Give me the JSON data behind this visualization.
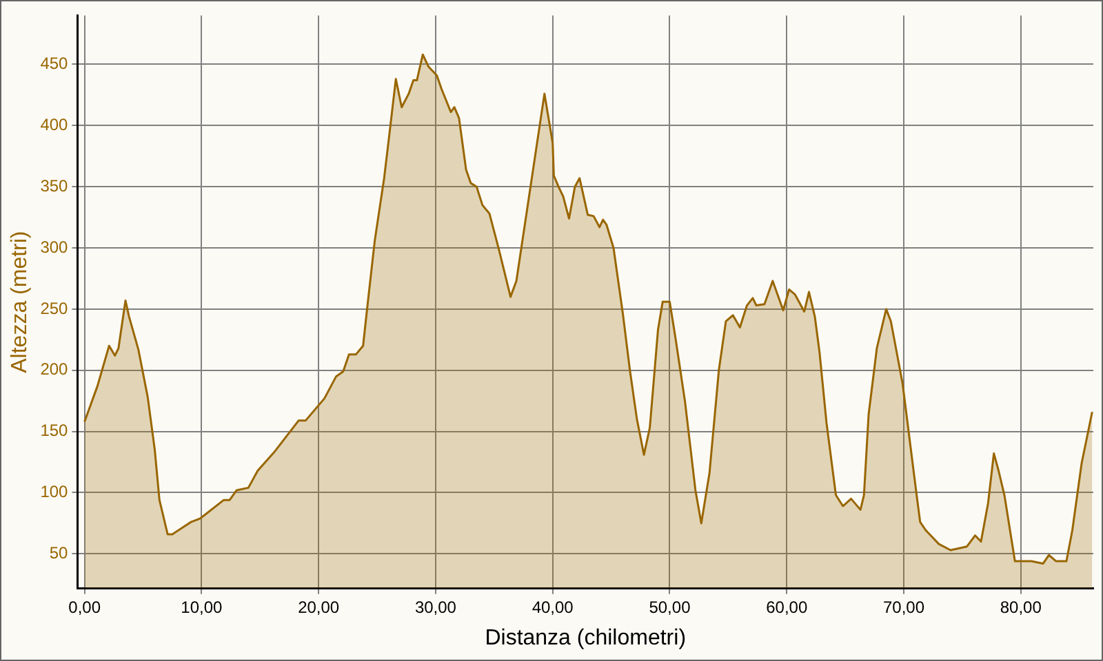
{
  "chart_data": {
    "type": "area",
    "xlabel": "Distanza (chilometri)",
    "ylabel": "Altezza (metri)",
    "xlim": [
      -0.6,
      86.2
    ],
    "ylim": [
      21.6,
      490
    ],
    "xticks": [
      {
        "value": 0,
        "label": "0,00"
      },
      {
        "value": 10,
        "label": "10,00"
      },
      {
        "value": 20,
        "label": "20,00"
      },
      {
        "value": 30,
        "label": "30,00"
      },
      {
        "value": 40,
        "label": "40,00"
      },
      {
        "value": 50,
        "label": "50,00"
      },
      {
        "value": 60,
        "label": "60,00"
      },
      {
        "value": 70,
        "label": "70,00"
      },
      {
        "value": 80,
        "label": "80,00"
      }
    ],
    "yticks": [
      50,
      100,
      150,
      200,
      250,
      300,
      350,
      400,
      450
    ],
    "grid": true,
    "marker": "none",
    "line_style": "solid",
    "series": [
      {
        "color": "#996600",
        "x": [
          0,
          1.1,
          2.1,
          2.6,
          2.9,
          3.5,
          3.8,
          4.6,
          5.4,
          6.0,
          6.4,
          7.1,
          7.5,
          9.1,
          9.9,
          11.9,
          12.4,
          13.0,
          14.0,
          14.8,
          16.2,
          18.3,
          18.9,
          20.5,
          21.5,
          22.1,
          22.6,
          23.2,
          23.8,
          24.2,
          24.8,
          25.6,
          26.1,
          26.6,
          27.1,
          27.7,
          28.1,
          28.4,
          28.9,
          29.4,
          30.1,
          30.5,
          31.3,
          31.6,
          32.0,
          32.6,
          33.0,
          33.5,
          34.0,
          34.6,
          35.4,
          36.4,
          36.9,
          37.7,
          38.5,
          39.3,
          40.0,
          40.1,
          40.5,
          40.9,
          41.4,
          41.9,
          42.3,
          43.0,
          43.5,
          44.0,
          44.3,
          44.6,
          45.2,
          46.0,
          46.6,
          47.2,
          47.8,
          48.3,
          49.0,
          49.4,
          50.0,
          50.5,
          51.3,
          52.2,
          52.7,
          53.4,
          54.2,
          54.8,
          55.4,
          56.0,
          56.6,
          57.1,
          57.4,
          58.1,
          58.8,
          59.7,
          60.2,
          60.7,
          61.5,
          61.9,
          62.4,
          62.8,
          63.4,
          64.2,
          64.8,
          65.5,
          66.3,
          66.6,
          67.0,
          67.7,
          68.5,
          68.9,
          69.9,
          71.1,
          71.4,
          71.9,
          73.0,
          74.0,
          75.4,
          76.1,
          76.6,
          77.2,
          77.7,
          78.1,
          78.6,
          79.5,
          80.9,
          81.9,
          82.4,
          83.0,
          83.9,
          84.4,
          85.2,
          86.1
        ],
        "values": [
          158,
          187,
          220,
          212,
          218,
          257,
          244,
          217,
          178,
          135,
          94,
          66,
          66,
          76,
          79,
          94,
          94,
          102,
          104,
          118,
          133,
          159,
          159,
          177,
          195,
          199,
          213,
          213,
          220,
          255,
          306,
          357,
          397,
          438,
          415,
          426,
          437,
          437,
          458,
          448,
          441,
          430,
          411,
          415,
          406,
          364,
          353,
          350,
          335,
          328,
          299,
          260,
          273,
          324,
          375,
          426,
          386,
          359,
          350,
          342,
          324,
          350,
          357,
          327,
          326,
          317,
          323,
          319,
          300,
          246,
          200,
          160,
          131,
          153,
          233,
          256,
          256,
          226,
          175,
          102,
          75,
          116,
          200,
          240,
          245,
          235,
          253,
          259,
          253,
          254,
          273,
          249,
          266,
          262,
          248,
          264,
          244,
          215,
          157,
          98,
          89,
          95,
          86,
          98,
          164,
          218,
          250,
          240,
          189,
          98,
          76,
          69,
          58,
          53,
          56,
          65,
          60,
          91,
          132,
          118,
          98,
          44,
          44,
          42,
          49,
          44,
          44,
          69,
          124,
          166
        ]
      }
    ]
  }
}
